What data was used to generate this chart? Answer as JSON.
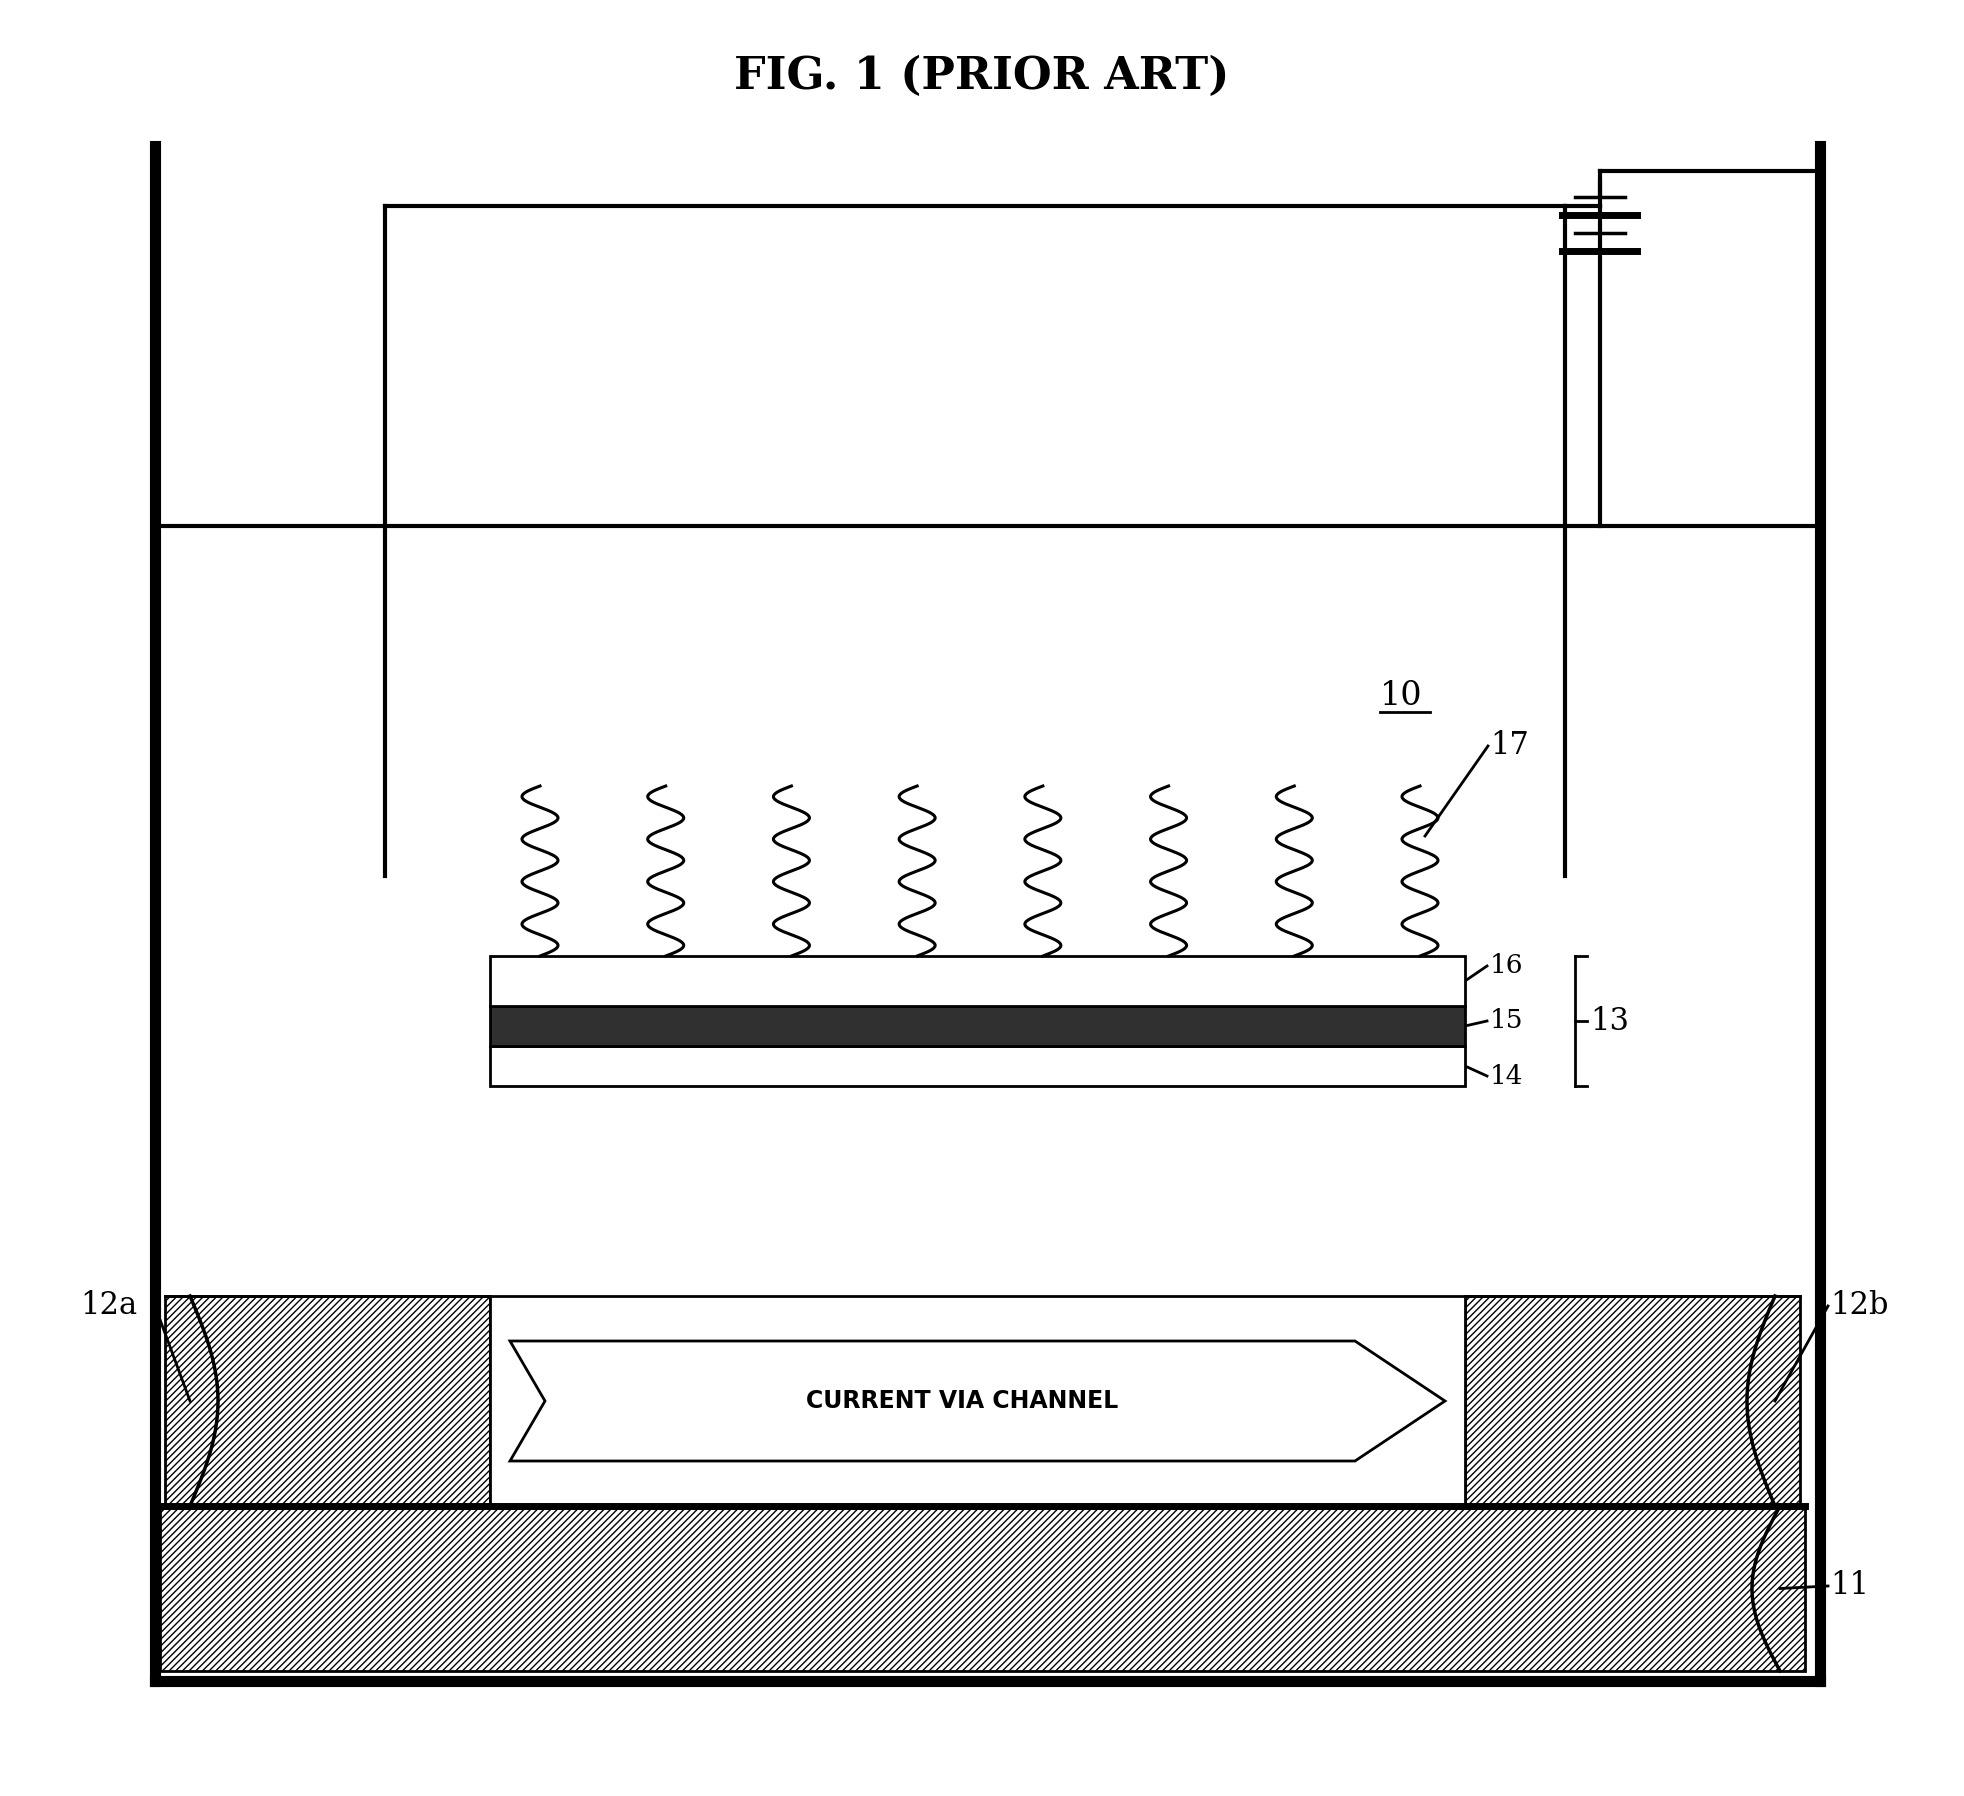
{
  "title": "FIG. 1 (PRIOR ART)",
  "bg_color": "#ffffff",
  "lc": "#000000",
  "label_10": "10",
  "label_11": "11",
  "label_12a": "12a",
  "label_12b": "12b",
  "label_13": "13",
  "label_14": "14",
  "label_15": "15",
  "label_16": "16",
  "label_17": "17",
  "channel_text": "CURRENT VIA CHANNEL",
  "title_fontsize": 32,
  "label_fontsize": 22,
  "small_label_fontsize": 19,
  "channel_fontsize": 17,
  "lw_outer": 8.0,
  "lw_main": 3.0,
  "lw_med": 2.5,
  "lw_thin": 2.0
}
